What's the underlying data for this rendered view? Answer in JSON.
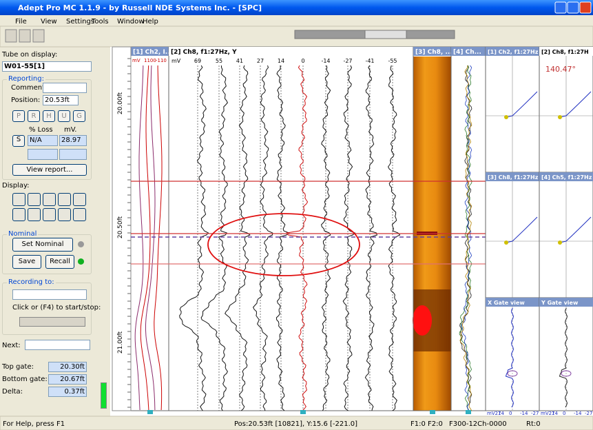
{
  "window": {
    "title": "Adept Pro MC 1.1.9 - by Russell NDE Systems Inc. - [SPC]",
    "menu": [
      "File",
      "View",
      "Settings",
      "Tools",
      "Window",
      "Help"
    ]
  },
  "left_panel": {
    "tube_label": "Tube on display:",
    "tube": "W01-55[1]",
    "reporting": {
      "label": "Reporting:",
      "comment_label": "Comment:",
      "position_label": "Position:",
      "position": "20.53ft",
      "buttons": [
        "P",
        "R",
        "H",
        "U",
        "G"
      ],
      "loss_label": "% Loss",
      "mv_label": "mV.",
      "s_button": "S",
      "loss": "N/A",
      "mv": "28.97",
      "view_report": "View report..."
    },
    "display_label": "Display:",
    "nominal": {
      "label": "Nominal",
      "set": "Set Nominal",
      "save": "Save",
      "recall": "Recall"
    },
    "recording": {
      "label": "Recording to:",
      "hint": "Click or (F4) to start/stop:"
    },
    "next_label": "Next:",
    "gates": [
      {
        "label": "Top gate:",
        "value": "20.30ft"
      },
      {
        "label": "Bottom gate:",
        "value": "20.67ft"
      },
      {
        "label": "Delta:",
        "value": "0.37ft"
      }
    ]
  },
  "strip": {
    "headers": [
      "[1] Ch2, I...",
      "[2] Ch8, f1:27Hz, Y",
      "[3] Ch8, ...",
      "[4] Ch..."
    ],
    "panel1_scale": [
      "mV",
      "1100",
      "-110"
    ],
    "unit": "mV",
    "scale": [
      "69",
      "55",
      "41",
      "27",
      "14",
      "0",
      "-14",
      "-27",
      "-41",
      "-55"
    ],
    "depths": [
      "20.00ft",
      "20.50ft",
      "21.00ft"
    ]
  },
  "lissajous": {
    "headers": [
      "[1] Ch2, f1:27Hz",
      "[2] Ch8, f1:27H",
      "[3] Ch8, f1:27Hz",
      "[4] Ch5, f1:27Hz"
    ],
    "angle": "140.47°",
    "gates": [
      "X Gate view",
      "Y Gate view"
    ],
    "gate_scale": [
      "mV27",
      "14",
      "0",
      "-14",
      "-27"
    ]
  },
  "status": {
    "help": "For Help, press F1",
    "position": "Pos:20.53ft [10821], Y:15.6 [-221.0]",
    "freq": "F1:0 F2:0",
    "config": "F300-12Ch-0000",
    "rt": "Rt:0"
  }
}
